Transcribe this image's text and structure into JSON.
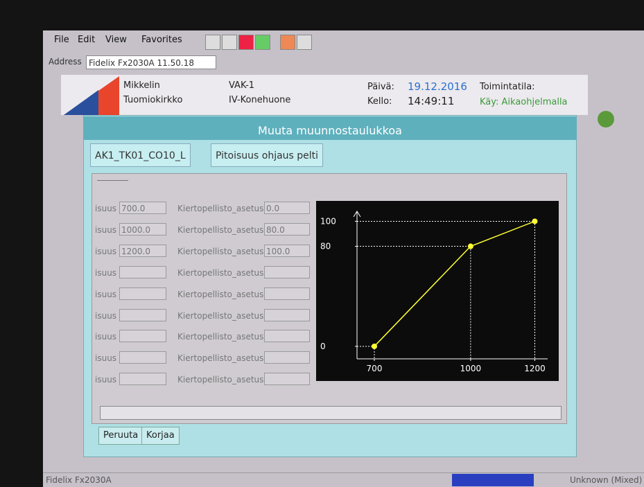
{
  "menu": [
    "File",
    "Edit",
    "View",
    "Favorites"
  ],
  "address": {
    "label": "Address",
    "value": "Fidelix Fx2030A 11.50.18"
  },
  "header": {
    "site1": "Mikkelin",
    "site2": "Tuomiokirkko",
    "unit": "VAK-1",
    "room": "IV-Konehuone",
    "date_label": "Päivä:",
    "date": "19.12.2016",
    "time_label": "Kello:",
    "time": "14:49:11",
    "mode_label": "Toimintatila:",
    "mode": "Käy: Aikaohjelmalla"
  },
  "dialog": {
    "title": "Muuta muunnostaulukkoa",
    "tabs": [
      "AK1_TK01_CO10_L",
      "Pitoisuus ohjaus pelti"
    ],
    "rows": [
      {
        "label": "isuus",
        "value": "700.0",
        "label2": "Kiertopellisto_asetus",
        "value2": "0.0"
      },
      {
        "label": "isuus",
        "value": "1000.0",
        "label2": "Kiertopellisto_asetus",
        "value2": "80.0"
      },
      {
        "label": "isuus",
        "value": "1200.0",
        "label2": "Kiertopellisto_asetus",
        "value2": "100.0"
      },
      {
        "label": "isuus",
        "label2": "Kiertopellisto_asetus"
      },
      {
        "label": "isuus",
        "label2": "Kiertopellisto_asetus"
      },
      {
        "label": "isuus",
        "label2": "Kiertopellisto_asetus"
      },
      {
        "label": "isuus",
        "label2": "Kiertopellisto_asetus"
      },
      {
        "label": "isuus",
        "label2": "Kiertopellisto_asetus"
      },
      {
        "label": "isuus",
        "label2": "Kiertopellisto_asetus"
      }
    ],
    "buttons": [
      "Peruuta",
      "Korjaa"
    ]
  },
  "chart_data": {
    "type": "line",
    "x": [
      700,
      1000,
      1200
    ],
    "series": [
      {
        "color": "#ffff33",
        "values": [
          0,
          80,
          100
        ]
      }
    ],
    "xlim": [
      646,
      1240
    ],
    "ylim": [
      -10,
      108
    ],
    "xticks": [
      700,
      1000,
      1200
    ],
    "yticks": [
      0,
      80,
      100
    ]
  },
  "status": {
    "left": "Fidelix Fx2030A",
    "right": "Unknown (Mixed)"
  }
}
